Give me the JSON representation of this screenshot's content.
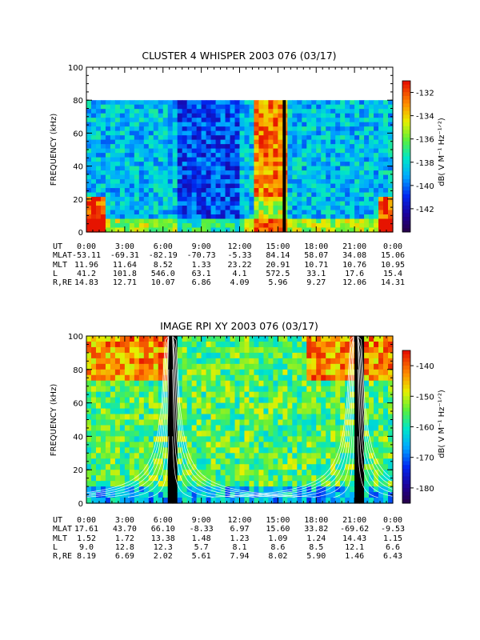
{
  "chart_data": [
    {
      "type": "heatmap",
      "title": "CLUSTER 4 WHISPER 2003 076 (03/17)",
      "ylabel": "FREQUENCY (kHz)",
      "ylim": [
        0,
        100
      ],
      "yticks": [
        0,
        20,
        40,
        60,
        80,
        100
      ],
      "xlim_hours": [
        0,
        24
      ],
      "data_max_frequency_khz": 80,
      "colorbar": {
        "label": "dB( V M⁻¹ Hz⁻¹ᐟ²)",
        "range": [
          -144,
          -131
        ],
        "ticks": [
          -132,
          -134,
          -136,
          -138,
          -140,
          -142
        ]
      },
      "ephemeris": {
        "rows": [
          "UT",
          "MLAT",
          "MLT",
          "L",
          "R,RE"
        ],
        "UT": [
          "0:00",
          "3:00",
          "6:00",
          "9:00",
          "12:00",
          "15:00",
          "18:00",
          "21:00",
          "0:00"
        ],
        "MLAT": [
          "-53.11",
          "-69.31",
          "-82.19",
          "-70.73",
          "-5.33",
          "84.14",
          "58.07",
          "34.08",
          "15.06"
        ],
        "MLT": [
          "11.96",
          "11.64",
          "8.52",
          "1.33",
          "23.22",
          "20.91",
          "10.71",
          "10.76",
          "10.95"
        ],
        "L": [
          "41.2",
          "101.8",
          "546.0",
          "63.1",
          "4.1",
          "572.5",
          "33.1",
          "17.6",
          "15.4"
        ],
        "R,RE": [
          "14.83",
          "12.71",
          "10.07",
          "6.86",
          "4.09",
          "5.96",
          "9.27",
          "12.06",
          "14.31"
        ]
      }
    },
    {
      "type": "heatmap",
      "title": "IMAGE RPI XY 2003 076 (03/17)",
      "ylabel": "FREQUENCY (kHz)",
      "ylim": [
        0,
        100
      ],
      "yticks": [
        0,
        20,
        40,
        60,
        80,
        100
      ],
      "xlim_hours": [
        0,
        24
      ],
      "colorbar": {
        "label": "dB( V M⁻¹ Hz⁻¹ᐟ²)",
        "range": [
          -185,
          -135
        ],
        "ticks": [
          -140,
          -150,
          -160,
          -170,
          -180
        ]
      },
      "ephemeris": {
        "rows": [
          "UT",
          "MLAT",
          "MLT",
          "L",
          "R,RE"
        ],
        "UT": [
          "0:00",
          "3:00",
          "6:00",
          "9:00",
          "12:00",
          "15:00",
          "18:00",
          "21:00",
          "0:00"
        ],
        "MLAT": [
          "17.61",
          "43.70",
          "66.10",
          "-8.33",
          "6.97",
          "15.60",
          "33.82",
          "-69.62",
          "-9.53"
        ],
        "MLT": [
          "1.52",
          "1.72",
          "13.38",
          "1.48",
          "1.23",
          "1.09",
          "1.24",
          "14.43",
          "1.15"
        ],
        "L": [
          "9.0",
          "12.8",
          "12.3",
          "5.7",
          "8.1",
          "8.6",
          "8.5",
          "12.1",
          "6.6"
        ],
        "R,RE": [
          "8.19",
          "6.69",
          "2.02",
          "5.61",
          "7.94",
          "8.02",
          "5.90",
          "1.46",
          "6.43"
        ]
      }
    }
  ]
}
